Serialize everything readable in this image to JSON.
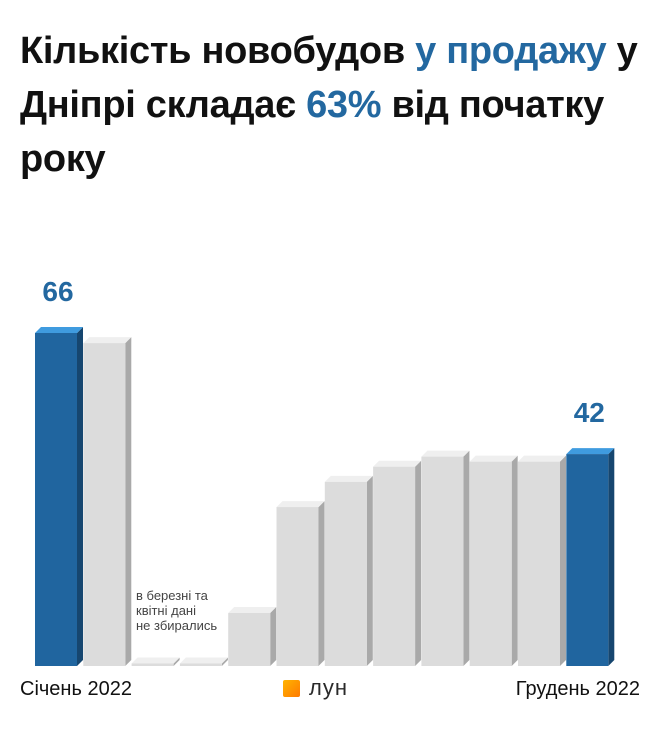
{
  "title": {
    "part1": "Кількість новобудов ",
    "part2": "у продажу",
    "part3": " у Дніпрі складає ",
    "part4": "63%",
    "part5": " від початку року"
  },
  "note": {
    "line1": "в березні та",
    "line2": "квітні дані",
    "line3": "не збирались"
  },
  "axis": {
    "start": "Січень 2022",
    "end": "Грудень 2022"
  },
  "brand": {
    "name": "лун"
  },
  "colors": {
    "highlight": "#2368a0",
    "bar": "#dcdcdc",
    "bar_highlight": "#20659f"
  },
  "chart_data": {
    "type": "bar",
    "values": [
      66,
      64,
      0.5,
      0.5,
      10.5,
      31.5,
      36.5,
      39.5,
      41.5,
      40.5,
      40.5,
      42
    ],
    "highlighted": [
      0,
      11
    ],
    "data_labels": [
      {
        "index": 0,
        "text": "66"
      },
      {
        "index": 11,
        "text": "42"
      }
    ],
    "ylim": [
      0,
      66
    ],
    "grid": false,
    "legend": "none"
  }
}
